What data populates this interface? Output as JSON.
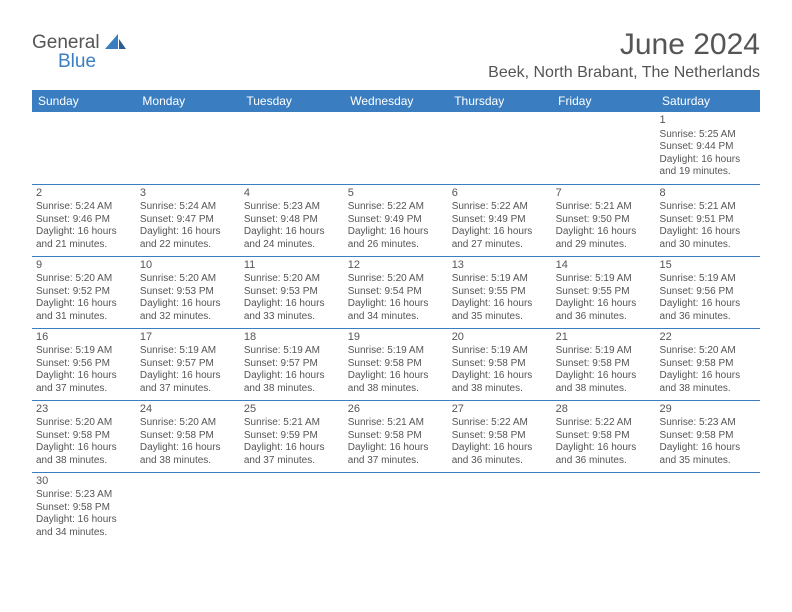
{
  "brand": {
    "general": "General",
    "blue": "Blue"
  },
  "title": "June 2024",
  "location": "Beek, North Brabant, The Netherlands",
  "colors": {
    "accent": "#3a7ec1",
    "text": "#555555",
    "bg": "#ffffff"
  },
  "weekdays": [
    "Sunday",
    "Monday",
    "Tuesday",
    "Wednesday",
    "Thursday",
    "Friday",
    "Saturday"
  ],
  "labels": {
    "sunrise": "Sunrise:",
    "sunset": "Sunset:",
    "daylight": "Daylight:"
  },
  "layout": {
    "first_weekday_index": 6,
    "days_in_month": 30
  },
  "days": {
    "1": {
      "sunrise": "5:25 AM",
      "sunset": "9:44 PM",
      "daylight": "16 hours and 19 minutes."
    },
    "2": {
      "sunrise": "5:24 AM",
      "sunset": "9:46 PM",
      "daylight": "16 hours and 21 minutes."
    },
    "3": {
      "sunrise": "5:24 AM",
      "sunset": "9:47 PM",
      "daylight": "16 hours and 22 minutes."
    },
    "4": {
      "sunrise": "5:23 AM",
      "sunset": "9:48 PM",
      "daylight": "16 hours and 24 minutes."
    },
    "5": {
      "sunrise": "5:22 AM",
      "sunset": "9:49 PM",
      "daylight": "16 hours and 26 minutes."
    },
    "6": {
      "sunrise": "5:22 AM",
      "sunset": "9:49 PM",
      "daylight": "16 hours and 27 minutes."
    },
    "7": {
      "sunrise": "5:21 AM",
      "sunset": "9:50 PM",
      "daylight": "16 hours and 29 minutes."
    },
    "8": {
      "sunrise": "5:21 AM",
      "sunset": "9:51 PM",
      "daylight": "16 hours and 30 minutes."
    },
    "9": {
      "sunrise": "5:20 AM",
      "sunset": "9:52 PM",
      "daylight": "16 hours and 31 minutes."
    },
    "10": {
      "sunrise": "5:20 AM",
      "sunset": "9:53 PM",
      "daylight": "16 hours and 32 minutes."
    },
    "11": {
      "sunrise": "5:20 AM",
      "sunset": "9:53 PM",
      "daylight": "16 hours and 33 minutes."
    },
    "12": {
      "sunrise": "5:20 AM",
      "sunset": "9:54 PM",
      "daylight": "16 hours and 34 minutes."
    },
    "13": {
      "sunrise": "5:19 AM",
      "sunset": "9:55 PM",
      "daylight": "16 hours and 35 minutes."
    },
    "14": {
      "sunrise": "5:19 AM",
      "sunset": "9:55 PM",
      "daylight": "16 hours and 36 minutes."
    },
    "15": {
      "sunrise": "5:19 AM",
      "sunset": "9:56 PM",
      "daylight": "16 hours and 36 minutes."
    },
    "16": {
      "sunrise": "5:19 AM",
      "sunset": "9:56 PM",
      "daylight": "16 hours and 37 minutes."
    },
    "17": {
      "sunrise": "5:19 AM",
      "sunset": "9:57 PM",
      "daylight": "16 hours and 37 minutes."
    },
    "18": {
      "sunrise": "5:19 AM",
      "sunset": "9:57 PM",
      "daylight": "16 hours and 38 minutes."
    },
    "19": {
      "sunrise": "5:19 AM",
      "sunset": "9:58 PM",
      "daylight": "16 hours and 38 minutes."
    },
    "20": {
      "sunrise": "5:19 AM",
      "sunset": "9:58 PM",
      "daylight": "16 hours and 38 minutes."
    },
    "21": {
      "sunrise": "5:19 AM",
      "sunset": "9:58 PM",
      "daylight": "16 hours and 38 minutes."
    },
    "22": {
      "sunrise": "5:20 AM",
      "sunset": "9:58 PM",
      "daylight": "16 hours and 38 minutes."
    },
    "23": {
      "sunrise": "5:20 AM",
      "sunset": "9:58 PM",
      "daylight": "16 hours and 38 minutes."
    },
    "24": {
      "sunrise": "5:20 AM",
      "sunset": "9:58 PM",
      "daylight": "16 hours and 38 minutes."
    },
    "25": {
      "sunrise": "5:21 AM",
      "sunset": "9:59 PM",
      "daylight": "16 hours and 37 minutes."
    },
    "26": {
      "sunrise": "5:21 AM",
      "sunset": "9:58 PM",
      "daylight": "16 hours and 37 minutes."
    },
    "27": {
      "sunrise": "5:22 AM",
      "sunset": "9:58 PM",
      "daylight": "16 hours and 36 minutes."
    },
    "28": {
      "sunrise": "5:22 AM",
      "sunset": "9:58 PM",
      "daylight": "16 hours and 36 minutes."
    },
    "29": {
      "sunrise": "5:23 AM",
      "sunset": "9:58 PM",
      "daylight": "16 hours and 35 minutes."
    },
    "30": {
      "sunrise": "5:23 AM",
      "sunset": "9:58 PM",
      "daylight": "16 hours and 34 minutes."
    }
  }
}
